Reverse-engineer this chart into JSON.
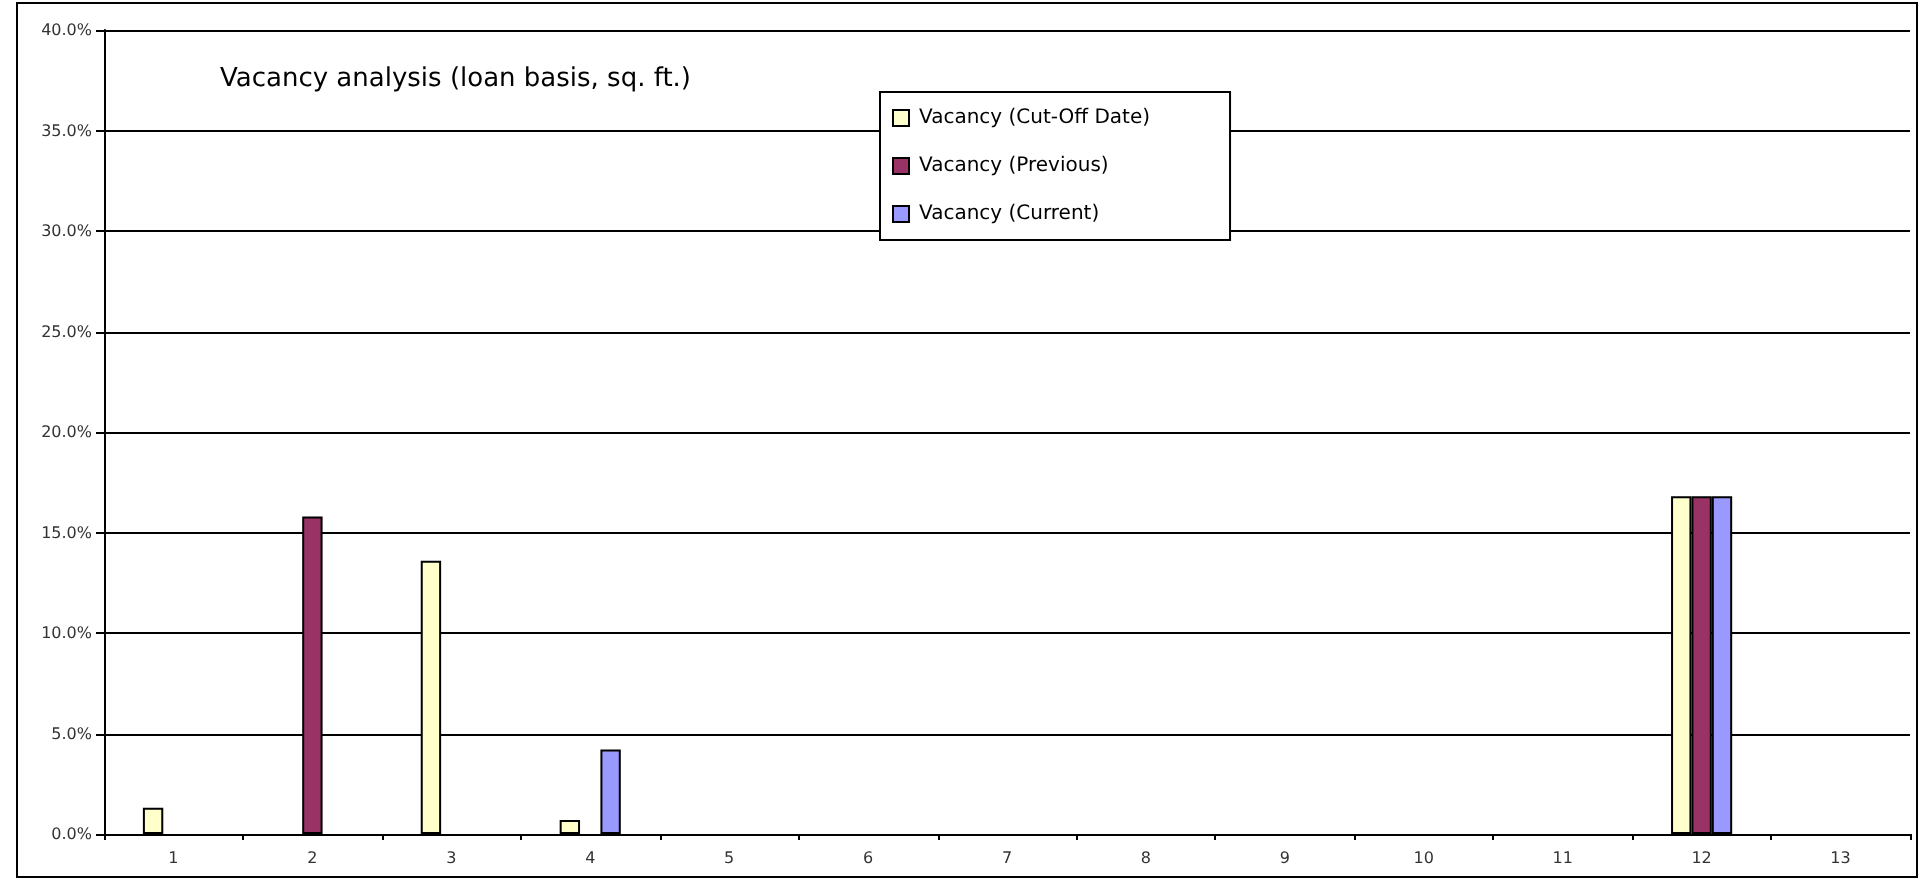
{
  "chart_data": {
    "type": "bar",
    "title": "Vacancy analysis (loan basis, sq. ft.)",
    "categories": [
      "1",
      "2",
      "3",
      "4",
      "5",
      "6",
      "7",
      "8",
      "9",
      "10",
      "11",
      "12",
      "13"
    ],
    "series": [
      {
        "name": "Vacancy (Cut-Off Date)",
        "color": "#ffffcc",
        "values": [
          1.3,
          null,
          13.6,
          0.7,
          null,
          null,
          null,
          null,
          null,
          null,
          null,
          16.8,
          null
        ]
      },
      {
        "name": "Vacancy (Previous)",
        "color": "#993366",
        "values": [
          null,
          15.8,
          null,
          null,
          null,
          null,
          null,
          null,
          null,
          null,
          null,
          16.8,
          null
        ]
      },
      {
        "name": "Vacancy (Current)",
        "color": "#9999ff",
        "values": [
          null,
          null,
          null,
          4.2,
          null,
          null,
          null,
          null,
          null,
          null,
          null,
          16.8,
          null
        ]
      }
    ],
    "ylim": [
      0,
      40
    ],
    "yticks": [
      {
        "value": 0,
        "label": "0.0%"
      },
      {
        "value": 5,
        "label": "5.0%"
      },
      {
        "value": 10,
        "label": "10.0%"
      },
      {
        "value": 15,
        "label": "15.0%"
      },
      {
        "value": 20,
        "label": "20.0%"
      },
      {
        "value": 25,
        "label": "25.0%"
      },
      {
        "value": 30,
        "label": "30.0%"
      },
      {
        "value": 35,
        "label": "35.0%"
      },
      {
        "value": 40,
        "label": "40.0%"
      }
    ],
    "grid": "y",
    "legend": "top"
  }
}
